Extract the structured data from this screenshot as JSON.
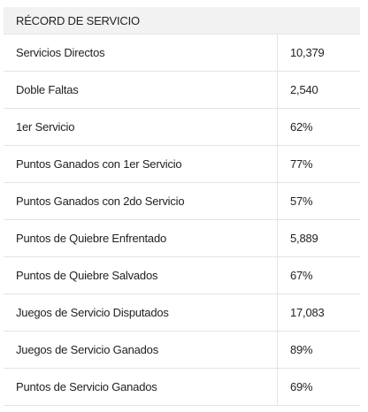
{
  "panel": {
    "title": "RÉCORD DE SERVICIO",
    "rows": [
      {
        "label": "Servicios Directos",
        "value": "10,379"
      },
      {
        "label": "Doble Faltas",
        "value": "2,540"
      },
      {
        "label": "1er Servicio",
        "value": "62%"
      },
      {
        "label": "Puntos Ganados con 1er Servicio",
        "value": "77%"
      },
      {
        "label": "Puntos Ganados con 2do Servicio",
        "value": "57%"
      },
      {
        "label": "Puntos de Quiebre Enfrentado",
        "value": "5,889"
      },
      {
        "label": "Puntos de Quiebre Salvados",
        "value": "67%"
      },
      {
        "label": "Juegos de Servicio Disputados",
        "value": "17,083"
      },
      {
        "label": "Juegos de Servicio Ganados",
        "value": "89%"
      },
      {
        "label": "Puntos de Servicio Ganados",
        "value": "69%"
      }
    ]
  },
  "colors": {
    "header_bg": "#f2f2f2",
    "border": "#e3e3e3",
    "text": "#222222"
  }
}
